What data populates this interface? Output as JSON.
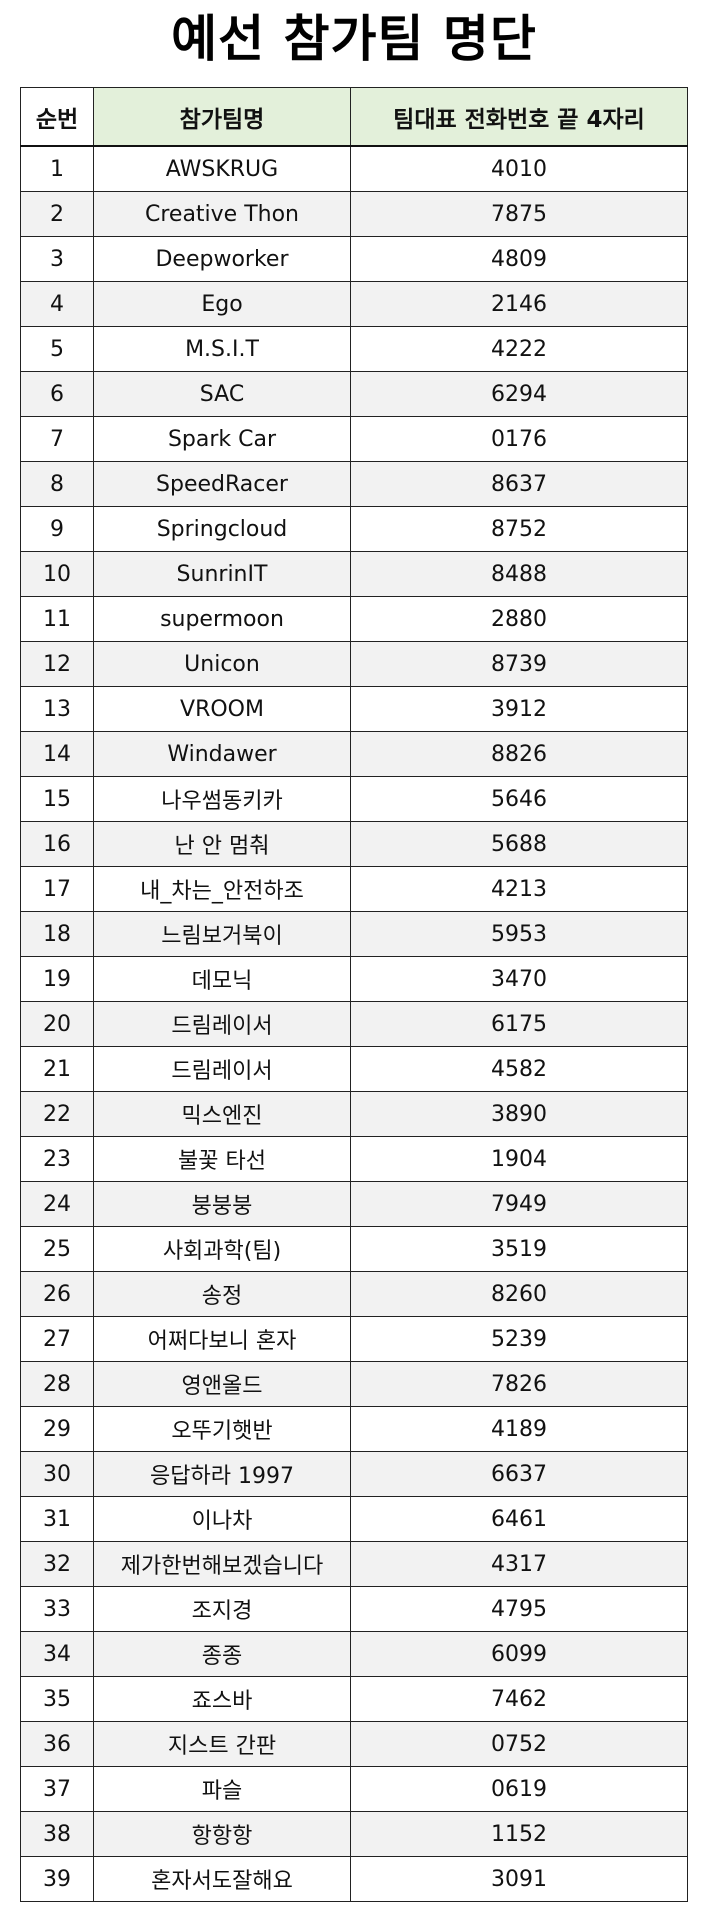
{
  "title": "예선 참가팀 명단",
  "colors": {
    "header_green": "#e3f0da",
    "zebra_gray": "#f2f2f2",
    "border": "#222222"
  },
  "table": {
    "headers": [
      "순번",
      "참가팀명",
      "팀대표 전화번호 끝 4자리"
    ],
    "rows": [
      [
        "1",
        "AWSKRUG",
        "4010"
      ],
      [
        "2",
        "Creative Thon",
        "7875"
      ],
      [
        "3",
        "Deepworker",
        "4809"
      ],
      [
        "4",
        "Ego",
        "2146"
      ],
      [
        "5",
        "M.S.I.T",
        "4222"
      ],
      [
        "6",
        "SAC",
        "6294"
      ],
      [
        "7",
        "Spark Car",
        "0176"
      ],
      [
        "8",
        "SpeedRacer",
        "8637"
      ],
      [
        "9",
        "Springcloud",
        "8752"
      ],
      [
        "10",
        "SunrinIT",
        "8488"
      ],
      [
        "11",
        "supermoon",
        "2880"
      ],
      [
        "12",
        "Unicon",
        "8739"
      ],
      [
        "13",
        "VROOM",
        "3912"
      ],
      [
        "14",
        "Windawer",
        "8826"
      ],
      [
        "15",
        "나우썸동키카",
        "5646"
      ],
      [
        "16",
        "난 안 멈춰",
        "5688"
      ],
      [
        "17",
        "내_차는_안전하조",
        "4213"
      ],
      [
        "18",
        "느림보거북이",
        "5953"
      ],
      [
        "19",
        "데모닉",
        "3470"
      ],
      [
        "20",
        "드림레이서",
        "6175"
      ],
      [
        "21",
        "드림레이서",
        "4582"
      ],
      [
        "22",
        "믹스엔진",
        "3890"
      ],
      [
        "23",
        "불꽃 타선",
        "1904"
      ],
      [
        "24",
        "붕붕붕",
        "7949"
      ],
      [
        "25",
        "사회과학(팀)",
        "3519"
      ],
      [
        "26",
        "송정",
        "8260"
      ],
      [
        "27",
        "어쩌다보니 혼자",
        "5239"
      ],
      [
        "28",
        "영앤올드",
        "7826"
      ],
      [
        "29",
        "오뚜기햇반",
        "4189"
      ],
      [
        "30",
        "응답하라 1997",
        "6637"
      ],
      [
        "31",
        "이나차",
        "6461"
      ],
      [
        "32",
        "제가한번해보겠습니다",
        "4317"
      ],
      [
        "33",
        "조지경",
        "4795"
      ],
      [
        "34",
        "종종",
        "6099"
      ],
      [
        "35",
        "죠스바",
        "7462"
      ],
      [
        "36",
        "지스트 간판",
        "0752"
      ],
      [
        "37",
        "파슬",
        "0619"
      ],
      [
        "38",
        "항항항",
        "1152"
      ],
      [
        "39",
        "혼자서도잘해요",
        "3091"
      ]
    ]
  }
}
